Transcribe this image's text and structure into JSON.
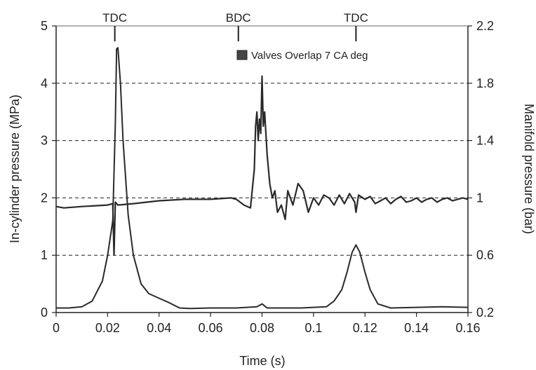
{
  "chart_data": {
    "type": "line",
    "title": "",
    "xlabel": "Time (s)",
    "ylabel_left": "In-cylinder pressure  (MPa)",
    "ylabel_right": "Manifold pressure (bar)",
    "xlim": [
      0,
      0.16
    ],
    "ylim_left": [
      0,
      5
    ],
    "ylim_right": [
      0.2,
      2.2
    ],
    "x_ticks": [
      "0",
      "0.02",
      "0.04",
      "0.06",
      "0.08",
      "0.1",
      "0.12",
      "0.14",
      "0.16"
    ],
    "y_ticks_left": [
      "0",
      "1",
      "2",
      "3",
      "4",
      "5"
    ],
    "y_ticks_right": [
      "0.2",
      "0.6",
      "1",
      "1.4",
      "1.8",
      "2.2"
    ],
    "grid": "horizontal dashed",
    "legend": {
      "label": "Valves Overlap 7 CA deg",
      "placement": "top-center"
    },
    "top_markers": [
      {
        "label": "TDC",
        "x": 0.0228
      },
      {
        "label": "BDC",
        "x": 0.0708
      },
      {
        "label": "TDC",
        "x": 0.1165
      }
    ],
    "series": [
      {
        "axis": "left",
        "x": [
          0,
          0.005,
          0.01,
          0.014,
          0.018,
          0.02,
          0.022,
          0.023,
          0.0235,
          0.024,
          0.025,
          0.026,
          0.028,
          0.03,
          0.033,
          0.036,
          0.04,
          0.044,
          0.048,
          0.052,
          0.06,
          0.07,
          0.078,
          0.08,
          0.082,
          0.086,
          0.095,
          0.105,
          0.108,
          0.111,
          0.113,
          0.115,
          0.1165,
          0.118,
          0.12,
          0.122,
          0.125,
          0.13,
          0.14,
          0.15,
          0.16
        ],
        "y": [
          0.08,
          0.08,
          0.1,
          0.2,
          0.55,
          1.0,
          1.6,
          3.3,
          4.6,
          4.62,
          4.0,
          3.0,
          1.7,
          1.0,
          0.5,
          0.33,
          0.25,
          0.17,
          0.08,
          0.07,
          0.08,
          0.08,
          0.1,
          0.15,
          0.08,
          0.08,
          0.08,
          0.1,
          0.2,
          0.4,
          0.7,
          1.05,
          1.18,
          1.05,
          0.7,
          0.4,
          0.15,
          0.08,
          0.09,
          0.1,
          0.09
        ]
      },
      {
        "axis": "right",
        "x": [
          0,
          0.003,
          0.01,
          0.02,
          0.022,
          0.0225,
          0.023,
          0.024,
          0.03,
          0.04,
          0.05,
          0.06,
          0.068,
          0.07,
          0.073,
          0.0755,
          0.077,
          0.0775,
          0.078,
          0.0785,
          0.079,
          0.0795,
          0.08,
          0.0805,
          0.081,
          0.082,
          0.083,
          0.084,
          0.085,
          0.086,
          0.0875,
          0.089,
          0.09,
          0.092,
          0.094,
          0.096,
          0.098,
          0.1,
          0.102,
          0.104,
          0.106,
          0.108,
          0.11,
          0.112,
          0.114,
          0.116,
          0.1165,
          0.1175,
          0.12,
          0.122,
          0.124,
          0.126,
          0.128,
          0.13,
          0.132,
          0.134,
          0.136,
          0.138,
          0.14,
          0.142,
          0.144,
          0.146,
          0.148,
          0.15,
          0.152,
          0.154,
          0.156,
          0.158,
          0.16
        ],
        "y": [
          0.94,
          0.93,
          0.94,
          0.95,
          0.96,
          0.6,
          0.97,
          0.95,
          0.96,
          0.98,
          0.99,
          0.99,
          1.0,
          0.99,
          0.95,
          0.93,
          1.2,
          1.5,
          1.6,
          1.4,
          1.55,
          1.45,
          1.85,
          1.5,
          1.6,
          1.3,
          1.1,
          1.0,
          1.05,
          0.9,
          0.95,
          0.85,
          1.05,
          0.95,
          1.1,
          1.05,
          0.9,
          1.0,
          0.95,
          1.02,
          1.0,
          0.95,
          1.02,
          0.96,
          1.03,
          0.97,
          0.9,
          1.02,
          0.99,
          1.01,
          0.96,
          0.98,
          1.0,
          0.96,
          0.99,
          1.01,
          0.97,
          0.98,
          1.0,
          0.97,
          0.99,
          1.0,
          0.97,
          0.99,
          1.0,
          0.98,
          0.99,
          1.0,
          0.99
        ]
      }
    ]
  },
  "colors": {
    "line": "#2a2a2a",
    "axis": "#222222",
    "grid": "#222222",
    "frame_top": "#9a9a9a",
    "legend_swatch": "#444444"
  }
}
